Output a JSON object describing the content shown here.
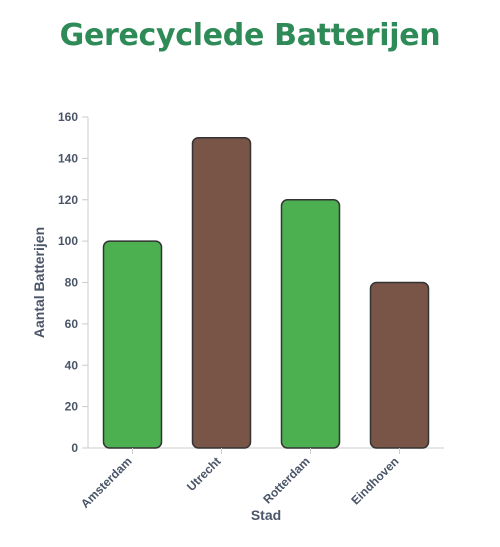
{
  "chart_data": {
    "type": "bar",
    "title": "Gerecyclede Batterijen",
    "categories": [
      "Amsterdam",
      "Utrecht",
      "Rotterdam",
      "Eindhoven"
    ],
    "values": [
      100,
      150,
      120,
      80
    ],
    "bar_colors": [
      "#4caf50",
      "#795548",
      "#4caf50",
      "#795548"
    ],
    "bar_stroke": "#333333",
    "xlabel": "Stad",
    "ylabel": "Aantal Batterijen",
    "ylim": [
      0,
      160
    ],
    "yticks": [
      0,
      20,
      40,
      60,
      80,
      100,
      120,
      140,
      160
    ],
    "grid": false,
    "legend": "none"
  },
  "colors": {
    "title": "#2e8b57",
    "axis_text": "#4a5568",
    "axis_line": "#cccccc"
  }
}
